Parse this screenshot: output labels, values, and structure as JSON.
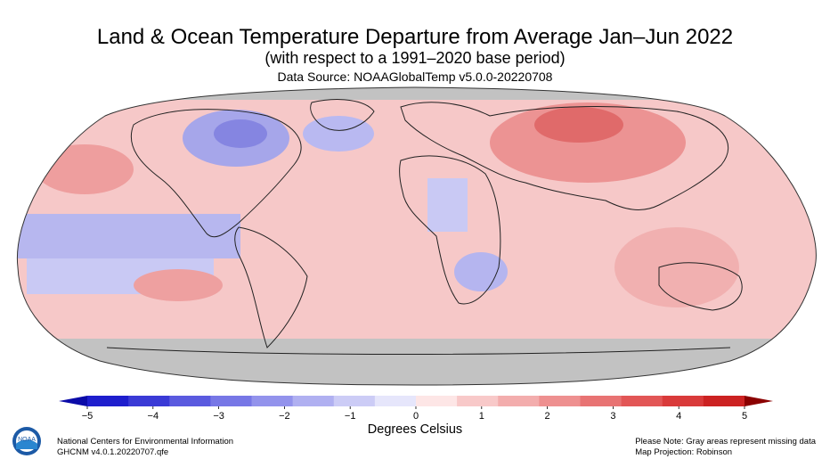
{
  "title": "Land & Ocean Temperature Departure from Average Jan–Jun 2022",
  "subtitle": "(with respect to a 1991–2020 base period)",
  "source": "Data Source: NOAAGlobalTemp v5.0.0-20220708",
  "colorbar": {
    "title": "Degrees Celsius",
    "ticks": [
      "−5",
      "−4",
      "−3",
      "−2",
      "−1",
      "0",
      "1",
      "2",
      "3",
      "4",
      "5"
    ],
    "min_color": "#0b0ba8",
    "max_color": "#8b0000",
    "colors": [
      "#1e1ecd",
      "#3a3ad6",
      "#5a5adf",
      "#7777e6",
      "#9393ec",
      "#b0b0f1",
      "#ccccf6",
      "#e6e6fb",
      "#fde6e6",
      "#f8c9c9",
      "#f3adad",
      "#ee9090",
      "#e87373",
      "#e25656",
      "#d93a3a",
      "#cc2222"
    ]
  },
  "missing_color": "#c2c2c2",
  "footer": {
    "org": "National Centers for Environmental Information",
    "version": "GHCNM v4.0.1.20220707.qfe",
    "note": "Please Note: Gray areas represent missing data",
    "projection": "Map Projection: Robinson"
  },
  "logo_text": "NOAA"
}
